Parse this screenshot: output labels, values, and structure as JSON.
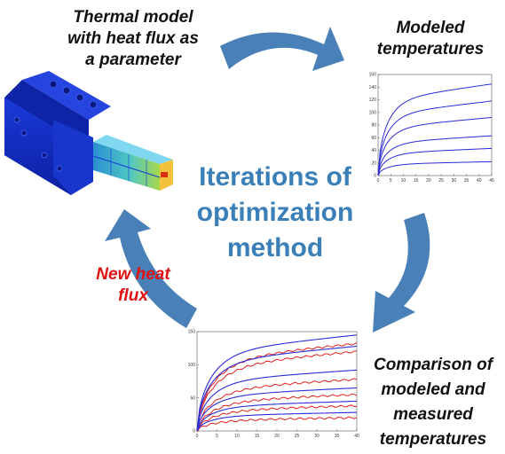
{
  "labels": {
    "thermal_model": [
      "Thermal model",
      "with heat flux as",
      "a parameter"
    ],
    "modeled_temperatures": [
      "Modeled",
      "temperatures"
    ],
    "comparison": [
      "Comparison of",
      "modeled and",
      "measured",
      "temperatures"
    ],
    "new_heat_flux": [
      "New heat",
      "flux"
    ]
  },
  "center": [
    "Iterations of",
    "optimization",
    "method"
  ],
  "colors": {
    "arrow": "#4a80b8",
    "center_text": "#3a7fb8",
    "new_heat_flux": "#e01010",
    "modeled_curve": "#2b2bd9",
    "measured_curve": "#e02020"
  },
  "chart_data": [
    {
      "type": "line",
      "x_ticks": [
        "0",
        "5",
        "10",
        "15",
        "20",
        "25",
        "30",
        "35",
        "40",
        "45"
      ],
      "y_ticks": [
        "0",
        "20",
        "40",
        "60",
        "80",
        "100",
        "120",
        "140",
        "160"
      ],
      "xlim": [
        0,
        45
      ],
      "ylim": [
        0,
        160
      ],
      "series_amplitudes": [
        145,
        118,
        92,
        63,
        43,
        22
      ]
    },
    {
      "type": "line",
      "x_ticks": [
        "0",
        "5",
        "10",
        "15",
        "20",
        "25",
        "30",
        "35",
        "40"
      ],
      "y_ticks": [
        "0",
        "50",
        "100",
        "150"
      ],
      "xlim": [
        0,
        40
      ],
      "ylim": [
        0,
        150
      ],
      "modeled_amplitudes": [
        145,
        128,
        92,
        65,
        45,
        28
      ],
      "measured_amplitudes": [
        132,
        120,
        78,
        55,
        38,
        20
      ]
    }
  ]
}
